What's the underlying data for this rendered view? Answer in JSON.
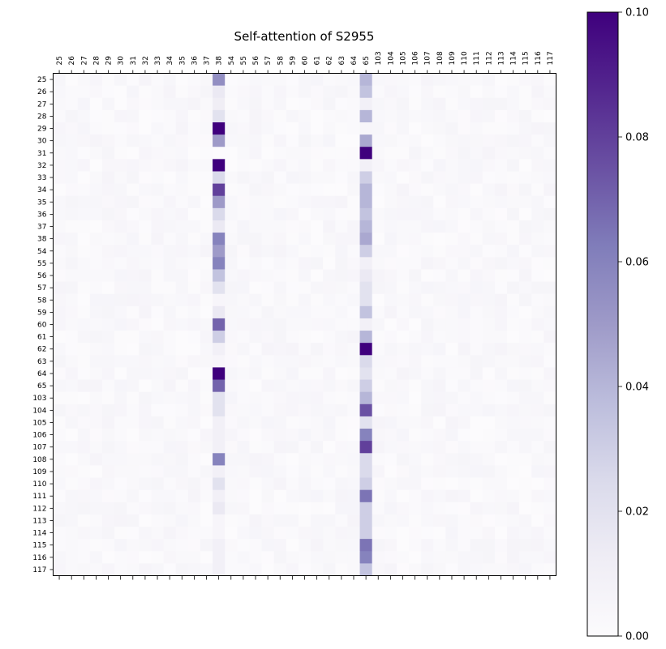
{
  "chart_data": {
    "type": "heatmap",
    "title": "Self-attention of S2955",
    "x_labels": [
      "25",
      "26",
      "27",
      "28",
      "29",
      "30",
      "31",
      "32",
      "33",
      "34",
      "35",
      "36",
      "37",
      "38",
      "54",
      "55",
      "56",
      "57",
      "58",
      "59",
      "60",
      "61",
      "62",
      "63",
      "64",
      "65",
      "103",
      "104",
      "105",
      "106",
      "107",
      "108",
      "109",
      "110",
      "111",
      "112",
      "113",
      "114",
      "115",
      "116",
      "117"
    ],
    "y_labels": [
      "25",
      "26",
      "27",
      "28",
      "29",
      "30",
      "31",
      "32",
      "33",
      "34",
      "35",
      "36",
      "37",
      "38",
      "54",
      "55",
      "56",
      "57",
      "58",
      "59",
      "60",
      "61",
      "62",
      "63",
      "64",
      "65",
      "103",
      "104",
      "105",
      "106",
      "107",
      "108",
      "109",
      "110",
      "111",
      "112",
      "113",
      "114",
      "115",
      "116",
      "117"
    ],
    "column_38_values": [
      0.055,
      0.015,
      0.012,
      0.02,
      0.1,
      0.05,
      0.0,
      0.1,
      0.025,
      0.08,
      0.05,
      0.025,
      0.015,
      0.06,
      0.05,
      0.06,
      0.035,
      0.02,
      0.005,
      0.015,
      0.07,
      0.03,
      0.01,
      0.005,
      0.1,
      0.07,
      0.02,
      0.02,
      0.01,
      0.01,
      0.01,
      0.06,
      0.01,
      0.02,
      0.01,
      0.015,
      0.005,
      0.005,
      0.01,
      0.01,
      0.01
    ],
    "column_65_values": [
      0.04,
      0.035,
      0.01,
      0.04,
      0.005,
      0.045,
      0.1,
      0.01,
      0.03,
      0.04,
      0.04,
      0.035,
      0.04,
      0.045,
      0.03,
      0.01,
      0.015,
      0.02,
      0.02,
      0.035,
      0.01,
      0.04,
      0.1,
      0.025,
      0.02,
      0.03,
      0.04,
      0.075,
      0.02,
      0.06,
      0.08,
      0.025,
      0.025,
      0.03,
      0.065,
      0.03,
      0.03,
      0.03,
      0.065,
      0.06,
      0.035
    ],
    "colorbar": {
      "min": 0.0,
      "max": 0.1,
      "ticks": [
        "0.00",
        "0.02",
        "0.04",
        "0.06",
        "0.08",
        "0.10"
      ]
    },
    "colormap": "Purples",
    "color_low": "#fcfbfd",
    "color_high": "#3f007d"
  }
}
